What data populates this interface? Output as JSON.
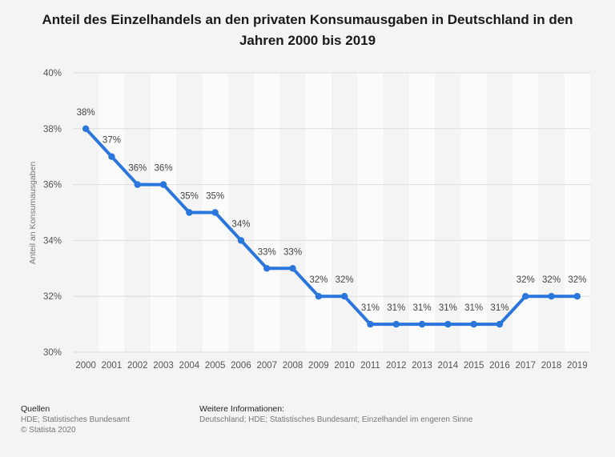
{
  "chart_data": {
    "type": "line",
    "title": "Anteil des Einzelhandels an den privaten Konsumausgaben in Deutschland in den Jahren 2000 bis 2019",
    "xlabel": "",
    "ylabel": "Anteil an Konsumausgaben",
    "ylim": [
      30,
      40
    ],
    "yticks": [
      30,
      32,
      34,
      36,
      38,
      40
    ],
    "ytick_labels": [
      "30%",
      "32%",
      "34%",
      "36%",
      "38%",
      "40%"
    ],
    "categories": [
      "2000",
      "2001",
      "2002",
      "2003",
      "2004",
      "2005",
      "2006",
      "2007",
      "2008",
      "2009",
      "2010",
      "2011",
      "2012",
      "2013",
      "2014",
      "2015",
      "2016",
      "2017",
      "2018",
      "2019"
    ],
    "values": [
      38,
      37,
      36,
      36,
      35,
      35,
      34,
      33,
      33,
      32,
      32,
      31,
      31,
      31,
      31,
      31,
      31,
      32,
      32,
      32
    ],
    "value_labels": [
      "38%",
      "37%",
      "36%",
      "36%",
      "35%",
      "35%",
      "34%",
      "33%",
      "33%",
      "32%",
      "32%",
      "31%",
      "31%",
      "31%",
      "31%",
      "31%",
      "31%",
      "32%",
      "32%",
      "32%"
    ],
    "line_color": "#2a76dd",
    "grid": true
  },
  "footer": {
    "sources_heading": "Quellen",
    "sources_line1": "HDE; Statistisches Bundesamt",
    "sources_line2": "© Statista 2020",
    "info_heading": "Weitere Informationen:",
    "info_line1": "Deutschland; HDE; Statistisches Bundesamt; Einzelhandel im engeren Sinne"
  }
}
